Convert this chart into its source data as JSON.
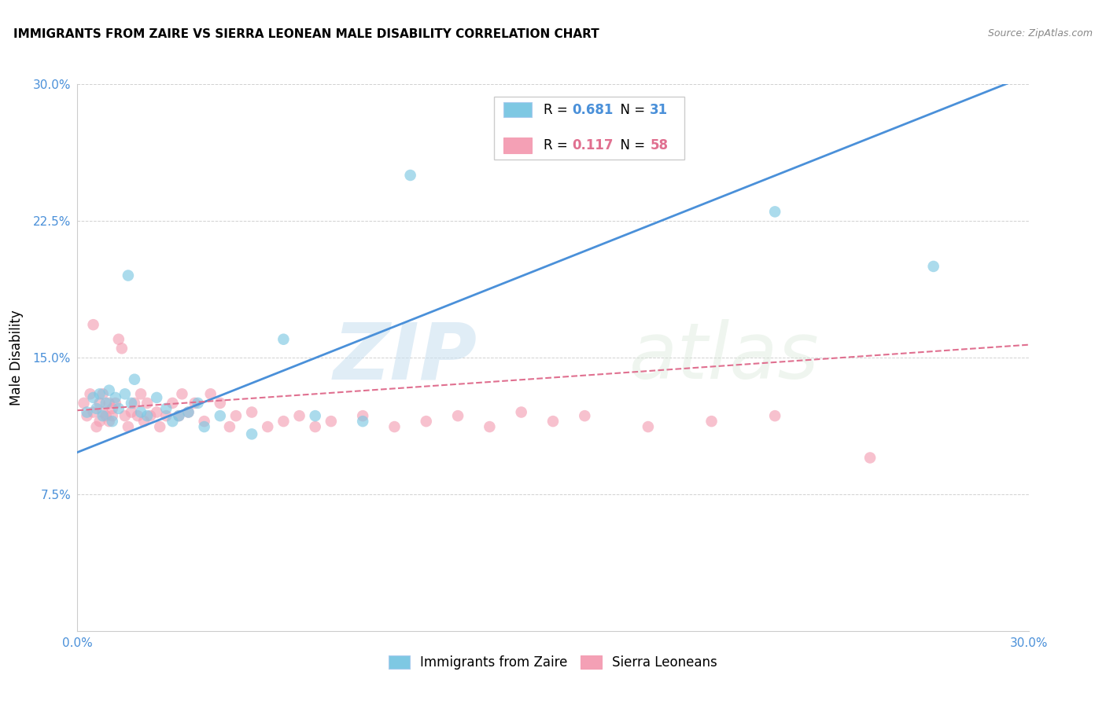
{
  "title": "IMMIGRANTS FROM ZAIRE VS SIERRA LEONEAN MALE DISABILITY CORRELATION CHART",
  "source": "Source: ZipAtlas.com",
  "ylabel": "Male Disability",
  "xlim": [
    0.0,
    0.3
  ],
  "ylim": [
    0.0,
    0.3
  ],
  "xticks": [
    0.0,
    0.05,
    0.1,
    0.15,
    0.2,
    0.25,
    0.3
  ],
  "yticks": [
    0.0,
    0.075,
    0.15,
    0.225,
    0.3
  ],
  "xticklabels": [
    "0.0%",
    "",
    "",
    "",
    "",
    "",
    "30.0%"
  ],
  "yticklabels": [
    "",
    "7.5%",
    "15.0%",
    "22.5%",
    "30.0%"
  ],
  "legend_label1": "Immigrants from Zaire",
  "legend_label2": "Sierra Leoneans",
  "R1": 0.681,
  "N1": 31,
  "R2": 0.117,
  "N2": 58,
  "color_blue": "#7ec8e3",
  "color_pink": "#f4a0b5",
  "color_blue_line": "#4a90d9",
  "color_pink_line": "#e07090",
  "watermark_zip": "ZIP",
  "watermark_atlas": "atlas",
  "blue_scatter_x": [
    0.003,
    0.005,
    0.006,
    0.007,
    0.008,
    0.009,
    0.01,
    0.011,
    0.012,
    0.013,
    0.015,
    0.016,
    0.017,
    0.018,
    0.02,
    0.022,
    0.025,
    0.028,
    0.03,
    0.032,
    0.035,
    0.038,
    0.04,
    0.045,
    0.055,
    0.065,
    0.075,
    0.09,
    0.105,
    0.22,
    0.27
  ],
  "blue_scatter_y": [
    0.12,
    0.128,
    0.122,
    0.13,
    0.118,
    0.125,
    0.132,
    0.115,
    0.128,
    0.122,
    0.13,
    0.195,
    0.125,
    0.138,
    0.12,
    0.118,
    0.128,
    0.122,
    0.115,
    0.118,
    0.12,
    0.125,
    0.112,
    0.118,
    0.108,
    0.16,
    0.118,
    0.115,
    0.25,
    0.23,
    0.2
  ],
  "pink_scatter_x": [
    0.002,
    0.003,
    0.004,
    0.005,
    0.005,
    0.006,
    0.007,
    0.007,
    0.008,
    0.008,
    0.009,
    0.01,
    0.01,
    0.011,
    0.011,
    0.012,
    0.013,
    0.014,
    0.015,
    0.016,
    0.017,
    0.018,
    0.019,
    0.02,
    0.021,
    0.022,
    0.023,
    0.025,
    0.026,
    0.028,
    0.03,
    0.032,
    0.033,
    0.035,
    0.037,
    0.04,
    0.042,
    0.045,
    0.048,
    0.05,
    0.055,
    0.06,
    0.065,
    0.07,
    0.075,
    0.08,
    0.09,
    0.1,
    0.11,
    0.12,
    0.13,
    0.14,
    0.15,
    0.16,
    0.18,
    0.2,
    0.22,
    0.25
  ],
  "pink_scatter_y": [
    0.125,
    0.118,
    0.13,
    0.12,
    0.168,
    0.112,
    0.125,
    0.115,
    0.12,
    0.13,
    0.118,
    0.125,
    0.115,
    0.118,
    0.122,
    0.125,
    0.16,
    0.155,
    0.118,
    0.112,
    0.12,
    0.125,
    0.118,
    0.13,
    0.115,
    0.125,
    0.118,
    0.12,
    0.112,
    0.118,
    0.125,
    0.118,
    0.13,
    0.12,
    0.125,
    0.115,
    0.13,
    0.125,
    0.112,
    0.118,
    0.12,
    0.112,
    0.115,
    0.118,
    0.112,
    0.115,
    0.118,
    0.112,
    0.115,
    0.118,
    0.112,
    0.12,
    0.115,
    0.118,
    0.112,
    0.115,
    0.118,
    0.095
  ],
  "blue_line_x": [
    0.0,
    0.3
  ],
  "blue_line_y": [
    0.098,
    0.305
  ],
  "pink_line_x": [
    0.0,
    0.3
  ],
  "pink_line_y": [
    0.121,
    0.157
  ]
}
